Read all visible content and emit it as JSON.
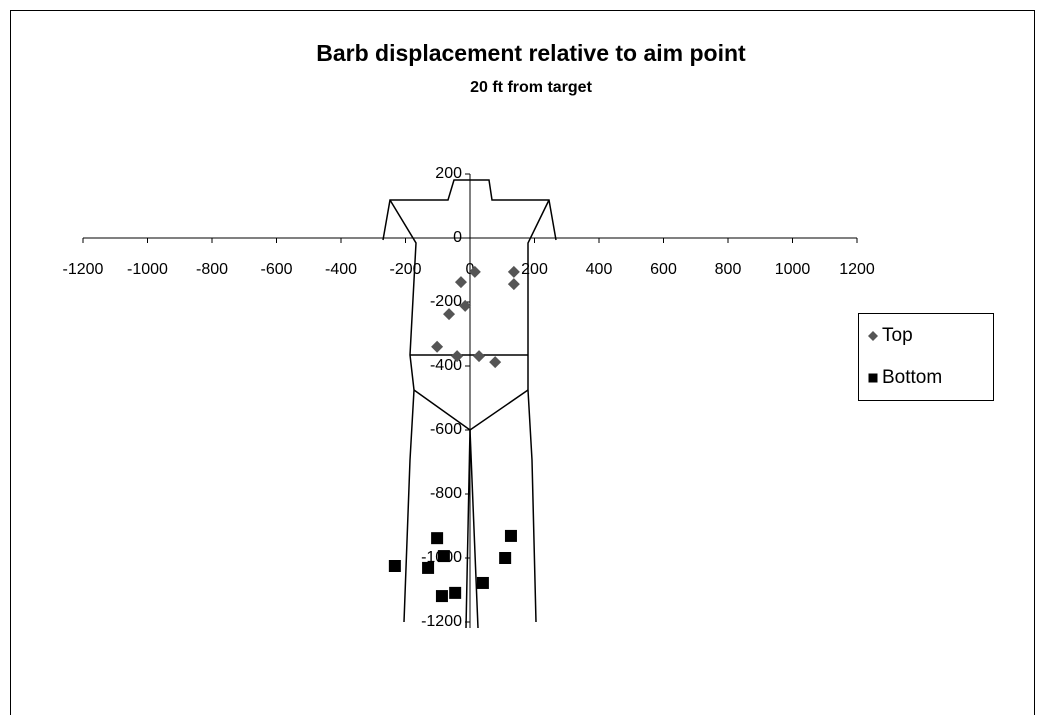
{
  "chart_data": {
    "type": "scatter",
    "title": "Barb displacement relative to aim point",
    "subtitle": "20 ft from target",
    "xlim": [
      -1200,
      1200
    ],
    "xticks": [
      -1200,
      -1000,
      -800,
      -600,
      -400,
      -200,
      0,
      200,
      400,
      600,
      800,
      1000,
      1200
    ],
    "ylim": [
      -1200,
      200
    ],
    "yticks": [
      200,
      0,
      -200,
      -400,
      -600,
      -800,
      -1000,
      -1200
    ],
    "legend": "right",
    "series": [
      {
        "name": "Top",
        "color": "#555555",
        "marker": "diamond",
        "x": [
          15,
          -28,
          -15,
          -65,
          136,
          136,
          -102,
          -40,
          28,
          78
        ],
        "values": [
          -106,
          -138,
          -212,
          -238,
          -106,
          -144,
          -340,
          -369,
          -369,
          -388
        ]
      },
      {
        "name": "Bottom",
        "color": "#000000",
        "marker": "square",
        "x": [
          -102,
          127,
          109,
          -81,
          -233,
          -130,
          40,
          -87,
          -46
        ],
        "values": [
          -938,
          -931,
          -1000,
          -994,
          -1025,
          -1031,
          -1078,
          -1119,
          -1109
        ]
      }
    ]
  }
}
